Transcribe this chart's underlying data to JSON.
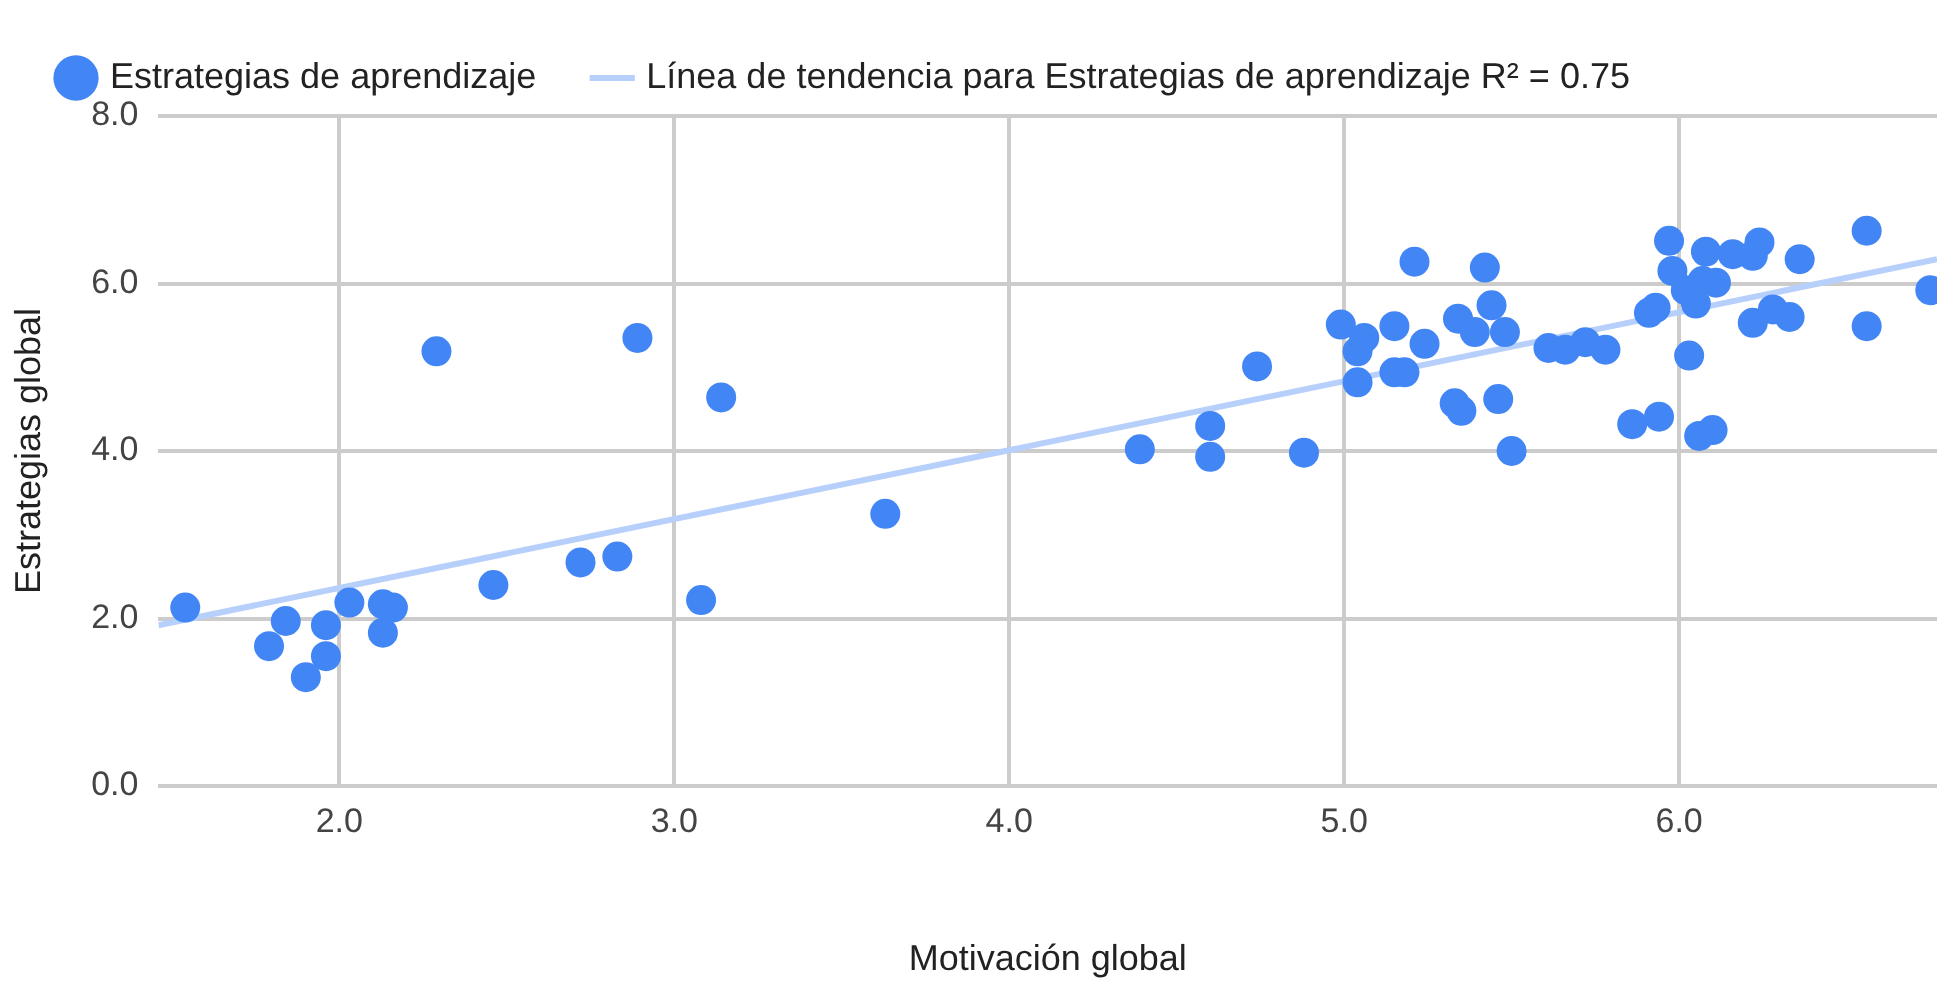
{
  "chart_data": {
    "type": "scatter",
    "xlabel": "Motivación global",
    "ylabel": "Estrategias global",
    "xlim": [
      1.46,
      6.77
    ],
    "xticks": [
      {
        "value": 2,
        "label": "2.0"
      },
      {
        "value": 3,
        "label": "3.0"
      },
      {
        "value": 4,
        "label": "4.0"
      },
      {
        "value": 5,
        "label": "5.0"
      },
      {
        "value": 6,
        "label": "6.0"
      }
    ],
    "ylim": [
      0,
      8
    ],
    "yticks": [
      {
        "value": 0,
        "label": "0.0"
      },
      {
        "value": 2,
        "label": "2.0"
      },
      {
        "value": 4,
        "label": "4.0"
      },
      {
        "value": 6,
        "label": "6.0"
      },
      {
        "value": 8,
        "label": "8.0"
      }
    ],
    "grid": true,
    "legend": "top left",
    "marker": "circle",
    "series": [
      {
        "name": "Estrategias de aprendizaje",
        "color": "#4285f4",
        "x": [
          1.54,
          1.79,
          1.84,
          1.9,
          1.96,
          1.96,
          2.03,
          2.13,
          2.13,
          2.16,
          2.29,
          2.46,
          2.72,
          2.83,
          2.89,
          3.08,
          3.14,
          3.63,
          4.39,
          4.6,
          4.6,
          4.74,
          4.88,
          4.99,
          5.04,
          5.04,
          5.06,
          5.15,
          5.15,
          5.18,
          5.21,
          5.24,
          5.34,
          5.33,
          5.35,
          5.39,
          5.42,
          5.44,
          5.46,
          5.48,
          5.5,
          5.61,
          5.66,
          5.72,
          5.78,
          5.86,
          5.91,
          5.93,
          5.94,
          5.97,
          5.98,
          6.02,
          6.03,
          6.05,
          6.07,
          6.08,
          6.06,
          6.1,
          6.11,
          6.16,
          6.22,
          6.22,
          6.24,
          6.28,
          6.33,
          6.36,
          6.56,
          6.56,
          6.75
        ],
        "values": [
          2.13,
          1.67,
          1.97,
          1.3,
          1.55,
          1.92,
          2.19,
          2.17,
          1.83,
          2.13,
          5.19,
          2.4,
          2.67,
          2.74,
          5.35,
          2.22,
          4.64,
          3.25,
          4.02,
          4.3,
          3.93,
          5.01,
          3.98,
          5.51,
          5.19,
          4.82,
          5.35,
          5.49,
          4.94,
          4.94,
          6.26,
          5.28,
          5.58,
          4.57,
          4.48,
          5.42,
          6.19,
          5.74,
          4.62,
          5.42,
          4.0,
          5.23,
          5.21,
          5.3,
          5.21,
          4.32,
          5.65,
          5.71,
          4.41,
          6.51,
          6.15,
          5.92,
          5.14,
          5.76,
          6.03,
          6.38,
          4.18,
          4.25,
          6.01,
          6.35,
          6.33,
          5.53,
          6.49,
          5.69,
          5.6,
          6.29,
          5.49,
          6.63,
          5.92
        ]
      },
      {
        "name": "Línea de tendencia para Estrategias de aprendizaje R² = 0.75",
        "color": "#b7d0fb",
        "type": "line",
        "marker": "none",
        "x": [
          1.46,
          6.77
        ],
        "values": [
          1.92,
          6.29
        ]
      }
    ]
  }
}
